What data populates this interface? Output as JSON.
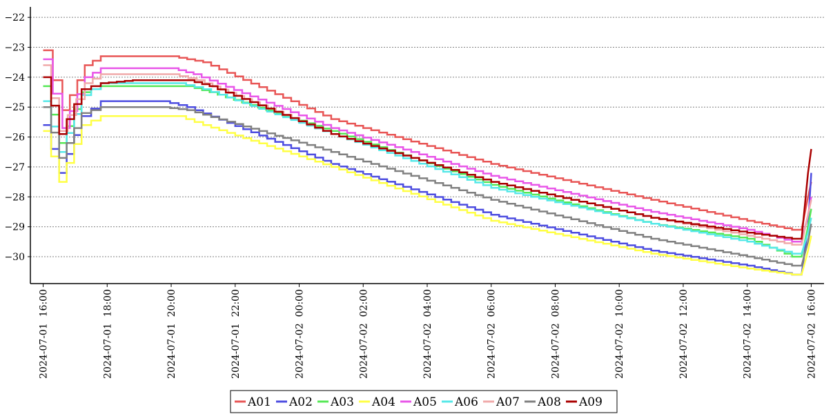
{
  "chart_data": {
    "type": "line",
    "title": "",
    "xlabel": "",
    "ylabel": "",
    "ylim": [
      -30.9,
      -21.65
    ],
    "yticks": [
      -22,
      -23,
      -24,
      -25,
      -26,
      -27,
      -28,
      -29,
      -30
    ],
    "grid": true,
    "legend_position": "bottom-center",
    "line_style": "step",
    "x_range_hours": [
      -0.4,
      24.4
    ],
    "x_ticks": [
      {
        "label": "2024-07-01  16:00",
        "hour": 0
      },
      {
        "label": "2024-07-01  18:00",
        "hour": 2
      },
      {
        "label": "2024-07-01  20:00",
        "hour": 4
      },
      {
        "label": "2024-07-01  22:00",
        "hour": 6
      },
      {
        "label": "2024-07-02  00:00",
        "hour": 8
      },
      {
        "label": "2024-07-02  02:00",
        "hour": 10
      },
      {
        "label": "2024-07-02  04:00",
        "hour": 12
      },
      {
        "label": "2024-07-02  06:00",
        "hour": 14
      },
      {
        "label": "2024-07-02  08:00",
        "hour": 16
      },
      {
        "label": "2024-07-02  10:00",
        "hour": 18
      },
      {
        "label": "2024-07-02  12:00",
        "hour": 20
      },
      {
        "label": "2024-07-02  14:00",
        "hour": 22
      },
      {
        "label": "2024-07-02  16:00",
        "hour": 24
      }
    ],
    "series": [
      {
        "name": "A01",
        "color": "#e85555",
        "points": [
          [
            0,
            -23.1
          ],
          [
            0.6,
            -25.1
          ],
          [
            1.3,
            -23.6
          ],
          [
            1.8,
            -23.3
          ],
          [
            4.0,
            -23.3
          ],
          [
            5.0,
            -23.5
          ],
          [
            9.0,
            -25.4
          ],
          [
            14.0,
            -26.9
          ],
          [
            19.0,
            -28.1
          ],
          [
            22.0,
            -28.8
          ],
          [
            23.4,
            -29.1
          ],
          [
            23.7,
            -29.1
          ],
          [
            23.9,
            -28.0
          ],
          [
            24.0,
            -27.5
          ]
        ]
      },
      {
        "name": "A02",
        "color": "#4c4ce0",
        "points": [
          [
            0,
            -25.6
          ],
          [
            0.5,
            -27.2
          ],
          [
            1.2,
            -25.3
          ],
          [
            1.8,
            -24.8
          ],
          [
            3.7,
            -24.8
          ],
          [
            4.5,
            -25.0
          ],
          [
            9.0,
            -26.9
          ],
          [
            14.0,
            -28.6
          ],
          [
            19.0,
            -29.8
          ],
          [
            22.0,
            -30.3
          ],
          [
            23.4,
            -30.6
          ],
          [
            23.7,
            -30.6
          ],
          [
            23.9,
            -29.0
          ],
          [
            24.0,
            -27.2
          ]
        ]
      },
      {
        "name": "A03",
        "color": "#55e855",
        "points": [
          [
            0,
            -24.3
          ],
          [
            0.5,
            -26.2
          ],
          [
            1.2,
            -24.5
          ],
          [
            1.8,
            -24.3
          ],
          [
            4.5,
            -24.3
          ],
          [
            5.2,
            -24.5
          ],
          [
            9.0,
            -25.8
          ],
          [
            14.0,
            -27.6
          ],
          [
            19.0,
            -28.9
          ],
          [
            22.0,
            -29.4
          ],
          [
            23.4,
            -30.0
          ],
          [
            23.7,
            -30.0
          ],
          [
            23.9,
            -29.0
          ],
          [
            24.0,
            -28.4
          ]
        ]
      },
      {
        "name": "A04",
        "color": "#ffff44",
        "points": [
          [
            0,
            -25.8
          ],
          [
            0.5,
            -27.5
          ],
          [
            1.2,
            -25.6
          ],
          [
            1.8,
            -25.3
          ],
          [
            4.2,
            -25.3
          ],
          [
            5.0,
            -25.6
          ],
          [
            9.0,
            -27.0
          ],
          [
            14.0,
            -28.8
          ],
          [
            19.0,
            -29.9
          ],
          [
            22.0,
            -30.4
          ],
          [
            23.4,
            -30.6
          ],
          [
            23.7,
            -30.6
          ],
          [
            23.9,
            -29.8
          ],
          [
            24.0,
            -29.3
          ]
        ]
      },
      {
        "name": "A05",
        "color": "#e855e8",
        "points": [
          [
            0,
            -23.4
          ],
          [
            0.6,
            -25.7
          ],
          [
            1.3,
            -24.0
          ],
          [
            1.8,
            -23.7
          ],
          [
            4.0,
            -23.7
          ],
          [
            4.7,
            -23.9
          ],
          [
            9.0,
            -25.7
          ],
          [
            14.0,
            -27.3
          ],
          [
            19.0,
            -28.5
          ],
          [
            22.0,
            -29.1
          ],
          [
            23.4,
            -29.5
          ],
          [
            23.7,
            -29.5
          ],
          [
            23.9,
            -28.6
          ],
          [
            24.0,
            -28.0
          ]
        ]
      },
      {
        "name": "A06",
        "color": "#55e8e8",
        "points": [
          [
            0,
            -24.8
          ],
          [
            0.5,
            -26.5
          ],
          [
            1.2,
            -24.6
          ],
          [
            1.8,
            -24.2
          ],
          [
            4.2,
            -24.2
          ],
          [
            5.0,
            -24.4
          ],
          [
            9.0,
            -25.9
          ],
          [
            14.0,
            -27.7
          ],
          [
            19.0,
            -28.9
          ],
          [
            22.0,
            -29.5
          ],
          [
            23.4,
            -29.9
          ],
          [
            23.7,
            -29.9
          ],
          [
            23.9,
            -29.2
          ],
          [
            24.0,
            -28.7
          ]
        ]
      },
      {
        "name": "A07",
        "color": "#f0aaaa",
        "points": [
          [
            0,
            -23.6
          ],
          [
            0.5,
            -25.8
          ],
          [
            1.3,
            -24.2
          ],
          [
            1.8,
            -23.9
          ],
          [
            4.0,
            -23.9
          ],
          [
            4.8,
            -24.1
          ],
          [
            9.0,
            -25.9
          ],
          [
            14.0,
            -27.5
          ],
          [
            19.0,
            -28.7
          ],
          [
            22.0,
            -29.3
          ],
          [
            23.4,
            -29.6
          ],
          [
            23.7,
            -29.6
          ],
          [
            23.9,
            -28.6
          ],
          [
            24.0,
            -28.1
          ]
        ]
      },
      {
        "name": "A08",
        "color": "#808080",
        "points": [
          [
            0,
            -25.0
          ],
          [
            0.5,
            -26.7
          ],
          [
            1.2,
            -25.2
          ],
          [
            1.8,
            -25.0
          ],
          [
            3.7,
            -25.0
          ],
          [
            4.5,
            -25.1
          ],
          [
            9.0,
            -26.5
          ],
          [
            14.0,
            -28.1
          ],
          [
            19.0,
            -29.4
          ],
          [
            22.0,
            -30.0
          ],
          [
            23.4,
            -30.3
          ],
          [
            23.7,
            -30.3
          ],
          [
            23.9,
            -29.5
          ],
          [
            24.0,
            -28.9
          ]
        ]
      },
      {
        "name": "A09",
        "color": "#aa0000",
        "points": [
          [
            0,
            -24.0
          ],
          [
            0.5,
            -25.9
          ],
          [
            1.2,
            -24.4
          ],
          [
            1.8,
            -24.2
          ],
          [
            2.8,
            -24.1
          ],
          [
            4.5,
            -24.1
          ],
          [
            5.2,
            -24.3
          ],
          [
            9.0,
            -25.9
          ],
          [
            14.0,
            -27.5
          ],
          [
            19.0,
            -28.7
          ],
          [
            22.0,
            -29.2
          ],
          [
            23.4,
            -29.4
          ],
          [
            23.7,
            -29.4
          ],
          [
            23.9,
            -27.2
          ],
          [
            24.0,
            -26.4
          ]
        ]
      }
    ]
  }
}
